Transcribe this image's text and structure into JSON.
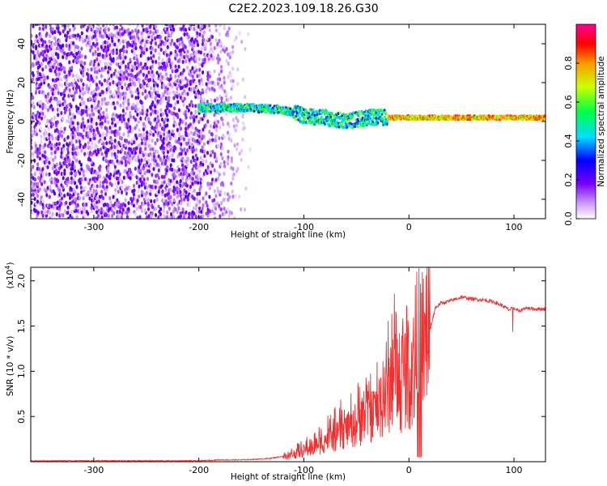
{
  "title": "C2E2.2023.109.18.26.G30",
  "chart_data": [
    {
      "type": "heatmap",
      "xlabel": "Height of straight line (km)",
      "ylabel": "Frequency (Hz)",
      "xlim": [
        -360,
        130
      ],
      "ylim": [
        -50,
        50
      ],
      "x_ticks": [
        -300,
        -200,
        -100,
        0,
        100
      ],
      "y_ticks": [
        -40,
        -20,
        0,
        20,
        40
      ],
      "colorbar": {
        "label": "Normalized spectral amplitude",
        "range": [
          0,
          1
        ],
        "ticks": [
          0.0,
          0.2,
          0.4,
          0.6,
          0.8
        ],
        "colormap": "rainbow (white, violet, blue, cyan, green, yellow, orange, red, magenta)"
      },
      "features": [
        {
          "name": "noise",
          "x_range": [
            -360,
            -150
          ],
          "y_range": [
            -50,
            50
          ],
          "level": 0.1
        },
        {
          "name": "signal band",
          "x_range": [
            -200,
            130
          ],
          "center_hz": [
            [
              -200,
              7
            ],
            [
              -150,
              7
            ],
            [
              -120,
              6
            ],
            [
              -100,
              3
            ],
            [
              -80,
              2
            ],
            [
              -60,
              0
            ],
            [
              -40,
              2
            ],
            [
              -20,
              2
            ],
            [
              0,
              2
            ],
            [
              100,
              2
            ],
            [
              130,
              2
            ]
          ]
        }
      ]
    },
    {
      "type": "line",
      "xlabel": "Height of straight line (km)",
      "ylabel": "SNR (10 * v/v)",
      "y_scale_note": "(x10",
      "y_scale_exp": "4",
      "xlim": [
        -360,
        130
      ],
      "ylim": [
        0,
        2.15
      ],
      "x_ticks": [
        -300,
        -200,
        -100,
        0,
        100
      ],
      "y_ticks": [
        0.5,
        1.0,
        1.5,
        2.0
      ],
      "color": "#ee3030",
      "series": [
        {
          "x": [
            -360,
            -300,
            -250,
            -200,
            -180,
            -160,
            -140,
            -130,
            -120,
            -110,
            -100,
            -90,
            -80,
            -70,
            -60,
            -50,
            -40,
            -30,
            -20,
            -15,
            -12,
            -8,
            -5,
            0,
            5,
            10,
            15,
            20,
            25,
            30,
            40,
            50,
            60,
            70,
            80,
            90,
            95,
            100,
            105,
            110,
            120,
            130
          ],
          "y": [
            0.01,
            0.01,
            0.01,
            0.01,
            0.02,
            0.02,
            0.03,
            0.04,
            0.06,
            0.1,
            0.15,
            0.2,
            0.3,
            0.35,
            0.45,
            0.5,
            0.65,
            0.7,
            0.9,
            1.2,
            1.4,
            0.8,
            1.3,
            1.05,
            1.2,
            1.25,
            1.35,
            1.45,
            1.7,
            1.75,
            1.78,
            1.82,
            1.8,
            1.79,
            1.77,
            1.72,
            1.68,
            1.7,
            1.66,
            1.7,
            1.69,
            1.69
          ]
        }
      ]
    }
  ]
}
